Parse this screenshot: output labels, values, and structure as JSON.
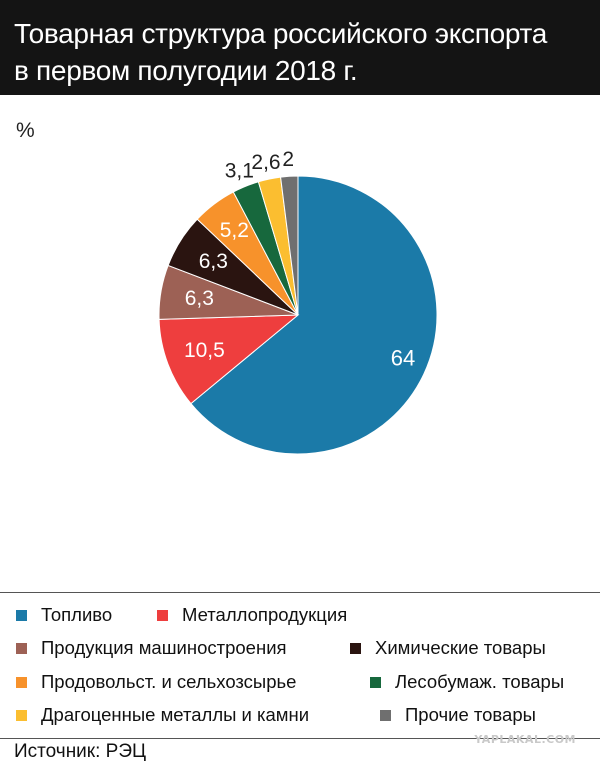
{
  "title_lines": [
    "Товарная структура российского экспорта",
    "в первом полугодии 2018 г."
  ],
  "unit_label": "%",
  "source": "Источник: РЭЦ",
  "watermark": "YAPLAKAL.COM",
  "chart_data": {
    "type": "pie",
    "title": "Товарная структура российского экспорта в первом полугодии 2018 г.",
    "unit": "%",
    "start_angle_deg": 0,
    "direction": "clockwise",
    "legend_position": "bottom",
    "slices": [
      {
        "name": "Топливо",
        "value": 64,
        "label": "64",
        "color": "#1b7aa8",
        "label_color": "#ffffff"
      },
      {
        "name": "Металлопродукция",
        "value": 10.5,
        "label": "10,5",
        "color": "#ee3e3e",
        "label_color": "#ffffff"
      },
      {
        "name": "Продукция машиностроения",
        "value": 6.3,
        "label": "6,3",
        "color": "#9d6155",
        "label_color": "#ffffff"
      },
      {
        "name": "Химические товары",
        "value": 6.3,
        "label": "6,3",
        "color": "#2a1410",
        "label_color": "#ffffff"
      },
      {
        "name": "Продовольст. и сельхозсырье",
        "value": 5.2,
        "label": "5,2",
        "color": "#f7922b",
        "label_color": "#ffffff"
      },
      {
        "name": "Лесобумаж. товары",
        "value": 3.1,
        "label": "3,1",
        "color": "#17683d",
        "label_color": "#222222"
      },
      {
        "name": "Драгоценные металлы и камни",
        "value": 2.6,
        "label": "2,6",
        "color": "#fbbe30",
        "label_color": "#222222"
      },
      {
        "name": "Прочие товары",
        "value": 2,
        "label": "2",
        "color": "#6f6f6f",
        "label_color": "#222222"
      }
    ]
  },
  "legend": [
    {
      "label": "Топливо",
      "color": "#1b7aa8"
    },
    {
      "label": "Металлопродукция",
      "color": "#ee3e3e"
    },
    {
      "label": "Продукция машиностроения",
      "color": "#9d6155"
    },
    {
      "label": "Химические товары",
      "color": "#2a1410"
    },
    {
      "label": "Продовольст. и сельхозсырье",
      "color": "#f7922b"
    },
    {
      "label": "Лесобумаж. товары",
      "color": "#17683d"
    },
    {
      "label": "Драгоценные металлы и камни",
      "color": "#fbbe30"
    },
    {
      "label": "Прочие товары",
      "color": "#6f6f6f"
    }
  ]
}
